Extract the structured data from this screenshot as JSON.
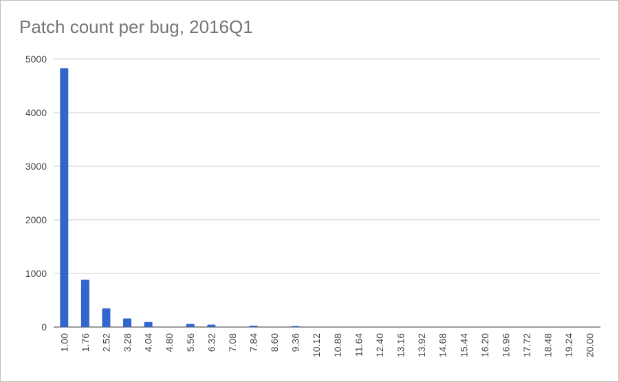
{
  "chart_data": {
    "type": "bar",
    "title": "Patch count per bug, 2016Q1",
    "xlabel": "",
    "ylabel": "",
    "ylim": [
      0,
      5000
    ],
    "yticks": [
      "0",
      "1000",
      "2000",
      "3000",
      "4000",
      "5000"
    ],
    "categories": [
      "1.00",
      "1.76",
      "2.52",
      "3.28",
      "4.04",
      "4.80",
      "5.56",
      "6.32",
      "7.08",
      "7.84",
      "8.60",
      "9.36",
      "10.12",
      "10.88",
      "11.64",
      "12.40",
      "13.16",
      "13.92",
      "14.68",
      "15.44",
      "16.20",
      "16.96",
      "17.72",
      "18.48",
      "19.24",
      "20.00"
    ],
    "values": [
      4830,
      885,
      350,
      160,
      95,
      0,
      60,
      45,
      0,
      25,
      0,
      20,
      0,
      0,
      0,
      0,
      0,
      0,
      0,
      0,
      0,
      0,
      0,
      0,
      0,
      0
    ],
    "bar_color": "#3366cc",
    "grid": true,
    "legend": "none"
  }
}
